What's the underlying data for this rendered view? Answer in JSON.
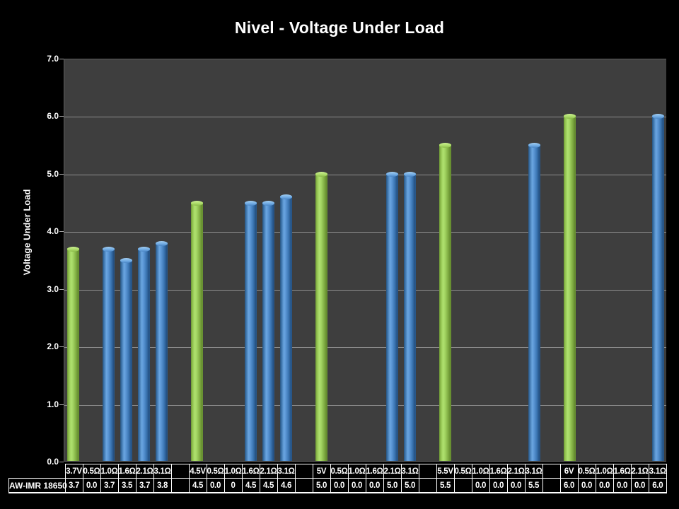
{
  "title": "Nivel - Voltage Under Load",
  "chart_data": {
    "type": "bar",
    "title": "Nivel - Voltage Under Load",
    "ylabel": "Voltage Under Load",
    "xlabel": "",
    "ylim": [
      0.0,
      7.0
    ],
    "ytick_step": 1.0,
    "ytick_labels": [
      "7.0",
      "6.0",
      "5.0",
      "4.0",
      "3.0",
      "2.0",
      "1.0",
      "0.0"
    ],
    "grid": true,
    "legend_position": "none",
    "series_name": "AW-IMR 18650",
    "page_bg": "#000000",
    "plot_bg": "#3E3E3E",
    "gridline_color": "#9B9B9B",
    "bar_colors": {
      "voltage_level_bar": "#9ACA3C",
      "load_reading_bar": "#4F81BD"
    },
    "columns": [
      {
        "label": "3.7V",
        "display": "3.7",
        "value": 3.7,
        "bar": "green"
      },
      {
        "label": "0.5Ω",
        "display": "0.0",
        "value": 0.0,
        "bar": null
      },
      {
        "label": "1.0Ω",
        "display": "3.7",
        "value": 3.7,
        "bar": "blue"
      },
      {
        "label": "1.6Ω",
        "display": "3.5",
        "value": 3.5,
        "bar": "blue"
      },
      {
        "label": "2.1Ω",
        "display": "3.7",
        "value": 3.7,
        "bar": "blue"
      },
      {
        "label": "3.1Ω",
        "display": "3.8",
        "value": 3.8,
        "bar": "blue"
      },
      {
        "label": "",
        "display": "",
        "value": null,
        "bar": null
      },
      {
        "label": "4.5V",
        "display": "4.5",
        "value": 4.5,
        "bar": "green"
      },
      {
        "label": "0.5Ω",
        "display": "0.0",
        "value": 0.0,
        "bar": null
      },
      {
        "label": "1.0Ω",
        "display": "0",
        "value": 0.0,
        "bar": null
      },
      {
        "label": "1.6Ω",
        "display": "4.5",
        "value": 4.5,
        "bar": "blue"
      },
      {
        "label": "2.1Ω",
        "display": "4.5",
        "value": 4.5,
        "bar": "blue"
      },
      {
        "label": "3.1Ω",
        "display": "4.6",
        "value": 4.6,
        "bar": "blue"
      },
      {
        "label": "",
        "display": "",
        "value": null,
        "bar": null
      },
      {
        "label": "5V",
        "display": "5.0",
        "value": 5.0,
        "bar": "green"
      },
      {
        "label": "0.5Ω",
        "display": "0.0",
        "value": 0.0,
        "bar": null
      },
      {
        "label": "1.0Ω",
        "display": "0.0",
        "value": 0.0,
        "bar": null
      },
      {
        "label": "1.6Ω",
        "display": "0.0",
        "value": 0.0,
        "bar": null
      },
      {
        "label": "2.1Ω",
        "display": "5.0",
        "value": 5.0,
        "bar": "blue"
      },
      {
        "label": "3.1Ω",
        "display": "5.0",
        "value": 5.0,
        "bar": "blue"
      },
      {
        "label": "",
        "display": "",
        "value": null,
        "bar": null
      },
      {
        "label": "5.5V",
        "display": "5.5",
        "value": 5.5,
        "bar": "green"
      },
      {
        "label": "0.5Ω",
        "display": "",
        "value": null,
        "bar": null
      },
      {
        "label": "1.0Ω",
        "display": "0.0",
        "value": 0.0,
        "bar": null
      },
      {
        "label": "1.6Ω",
        "display": "0.0",
        "value": 0.0,
        "bar": null
      },
      {
        "label": "2.1Ω",
        "display": "0.0",
        "value": 0.0,
        "bar": null
      },
      {
        "label": "3.1Ω",
        "display": "5.5",
        "value": 5.5,
        "bar": "blue"
      },
      {
        "label": "",
        "display": "",
        "value": null,
        "bar": null
      },
      {
        "label": "6V",
        "display": "6.0",
        "value": 6.0,
        "bar": "green"
      },
      {
        "label": "0.5Ω",
        "display": "0.0",
        "value": 0.0,
        "bar": null
      },
      {
        "label": "1.0Ω",
        "display": "0.0",
        "value": 0.0,
        "bar": null
      },
      {
        "label": "1.6Ω",
        "display": "0.0",
        "value": 0.0,
        "bar": null
      },
      {
        "label": "2.1Ω",
        "display": "0.0",
        "value": 0.0,
        "bar": null
      },
      {
        "label": "3.1Ω",
        "display": "6.0",
        "value": 6.0,
        "bar": "blue"
      }
    ]
  },
  "table": {
    "row_header": "AW-IMR 18650"
  }
}
